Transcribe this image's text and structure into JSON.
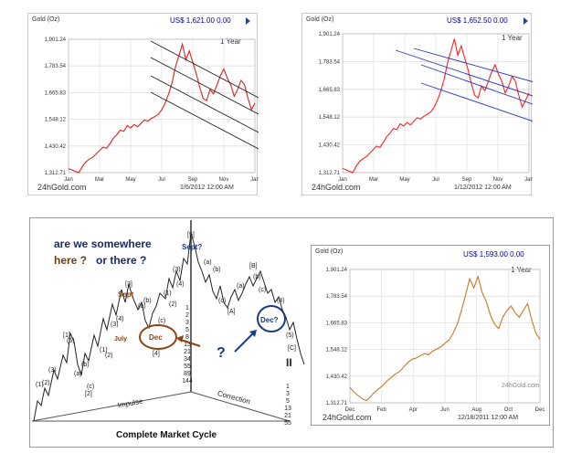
{
  "chart_data": [
    {
      "type": "line",
      "title": "Gold (Oz)",
      "price": "US$  1,621.00 0.00",
      "period": "1 Year",
      "brand": "24hGold.com",
      "timestamp": "1/6/2012 12:00 AM",
      "yticks": [
        "1,901.24",
        "1,783.54",
        "1,665.83",
        "1,548.12",
        "1,430.42",
        "1,312.71"
      ],
      "xticks": [
        "Jan",
        "Mar",
        "May",
        "Jul",
        "Sep",
        "Nov",
        "Jan"
      ],
      "ylim": [
        1312.71,
        1901.24
      ],
      "series": [
        {
          "color": "#e02020",
          "values": [
            1330,
            1325,
            1318,
            1313,
            1340,
            1360,
            1372,
            1380,
            1395,
            1410,
            1425,
            1420,
            1440,
            1465,
            1480,
            1500,
            1495,
            1520,
            1510,
            1525,
            1515,
            1530,
            1545,
            1540,
            1552,
            1560,
            1570,
            1590,
            1620,
            1660,
            1710,
            1780,
            1830,
            1880,
            1810,
            1850,
            1800,
            1750,
            1690,
            1640,
            1630,
            1680,
            1660,
            1700,
            1740,
            1770,
            1730,
            1700,
            1650,
            1680,
            1720,
            1700,
            1640,
            1590,
            1620
          ]
        }
      ],
      "channel_lines": 4
    },
    {
      "type": "line",
      "title": "Gold (Oz)",
      "price": "US$  1,652.50 0.00",
      "period": "1 Year",
      "brand": "24hGold.com",
      "timestamp": "1/12/2012 12:00 AM",
      "yticks": [
        "1,901.24",
        "1,783.54",
        "1,665.83",
        "1,548.12",
        "1,430.42",
        "1,312.71"
      ],
      "xticks": [
        "Jan",
        "Mar",
        "May",
        "Jul",
        "Sep",
        "Nov",
        "Jan"
      ],
      "ylim": [
        1312.71,
        1901.24
      ],
      "series": [
        {
          "color": "#ff2020",
          "values": [
            1330,
            1325,
            1318,
            1313,
            1340,
            1360,
            1372,
            1380,
            1395,
            1410,
            1425,
            1420,
            1440,
            1465,
            1480,
            1500,
            1495,
            1520,
            1510,
            1525,
            1515,
            1530,
            1545,
            1540,
            1552,
            1560,
            1570,
            1590,
            1620,
            1660,
            1710,
            1780,
            1830,
            1880,
            1810,
            1850,
            1800,
            1750,
            1690,
            1640,
            1630,
            1680,
            1660,
            1700,
            1740,
            1770,
            1730,
            1700,
            1650,
            1680,
            1720,
            1700,
            1640,
            1590,
            1620,
            1650
          ]
        }
      ],
      "channel_lines": 4
    },
    {
      "type": "line",
      "title": "Gold (Oz)",
      "price": "US$  1,593.00 0.00",
      "period": "1 Year",
      "brand": "24hGold.com",
      "timestamp": "12/18/2011 12:00 AM",
      "watermark": "24hGold.com",
      "yticks": [
        "1,901.24",
        "1,783.54",
        "1,665.83",
        "1,548.12",
        "1,430.42",
        "1,312.71"
      ],
      "xticks": [
        "Dec",
        "Feb",
        "Apr",
        "Jun",
        "Aug",
        "Oct",
        "Dec"
      ],
      "ylim": [
        1312.71,
        1901.24
      ],
      "series": [
        {
          "color": "#cc7722",
          "values": [
            1380,
            1360,
            1345,
            1330,
            1322,
            1340,
            1360,
            1375,
            1390,
            1410,
            1425,
            1440,
            1450,
            1470,
            1490,
            1505,
            1510,
            1520,
            1530,
            1525,
            1540,
            1550,
            1560,
            1575,
            1590,
            1620,
            1660,
            1720,
            1790,
            1860,
            1820,
            1870,
            1800,
            1760,
            1700,
            1660,
            1640,
            1690,
            1720,
            1740,
            1710,
            1690,
            1720,
            1750,
            1680,
            1620,
            1593
          ]
        }
      ]
    }
  ],
  "diagram": {
    "question1": "are we somewhere",
    "question2_a": "here ?",
    "question2_b": "or there ?",
    "sept": "Sept",
    "sept_top": "Sept?",
    "july": "July",
    "dec_left": "Dec",
    "dec_right": "Dec?",
    "qmark": "?",
    "impulse": "Impulse",
    "correction": "Correction",
    "caption": "Complete Market Cycle",
    "fib_left": [
      "1",
      "2",
      "3",
      "5",
      "8",
      "13",
      "21",
      "34",
      "55",
      "89",
      "144"
    ],
    "fib_right": [
      "1",
      "3",
      "5",
      "13",
      "21",
      "55"
    ],
    "roman": "II"
  }
}
